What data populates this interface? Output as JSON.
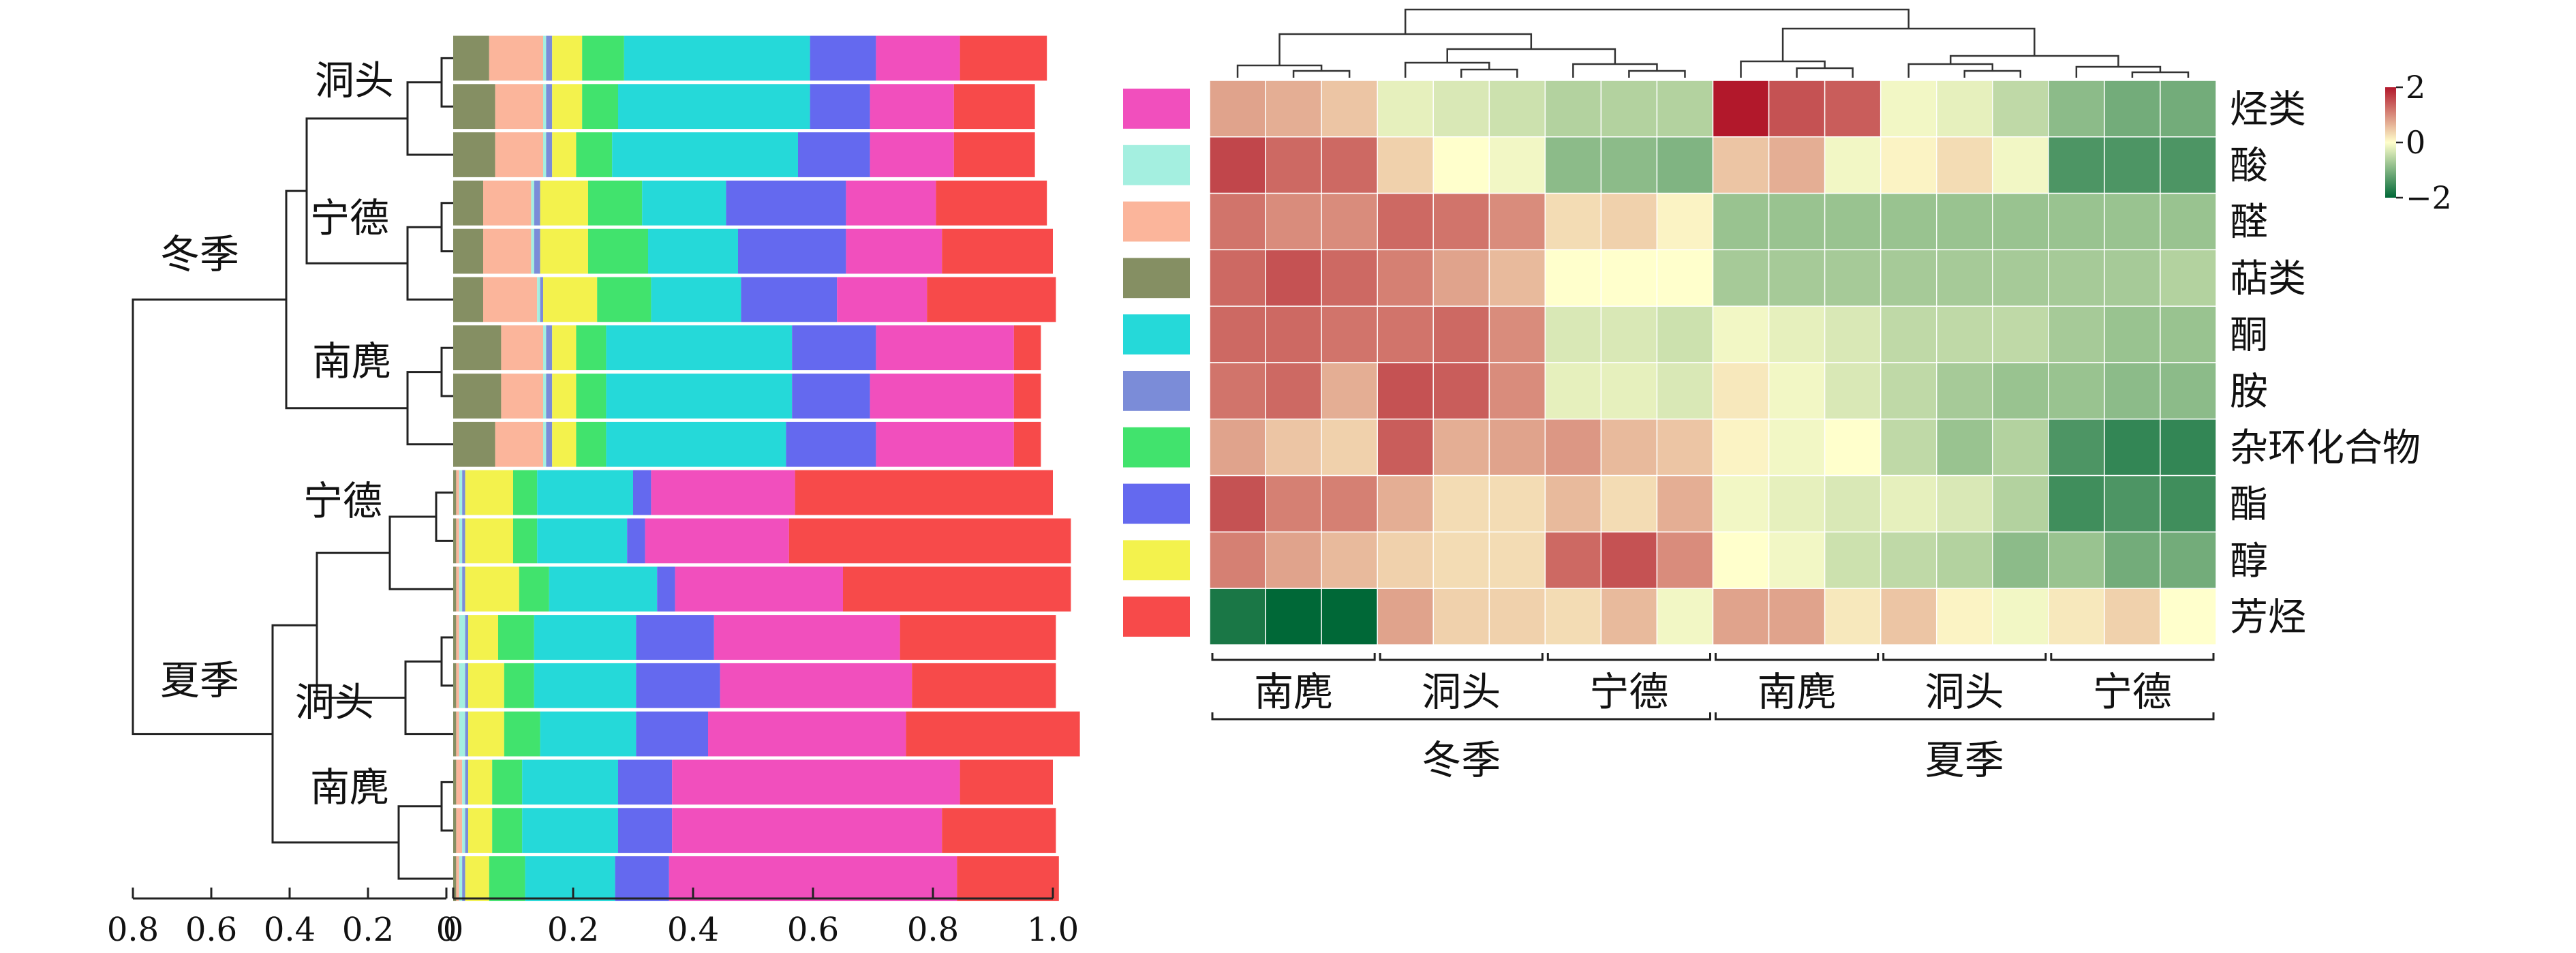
{
  "chart_data": [
    {
      "type": "bar",
      "subtype": "stacked-horizontal-100",
      "xlim": [
        0,
        1.0
      ],
      "x_ticks": [
        "0",
        "0.2",
        "0.4",
        "0.6",
        "0.8",
        "1.0"
      ],
      "dendrogram_ticks": [
        "0.8",
        "0.6",
        "0.4",
        "0.2",
        "0"
      ],
      "season_labels": [
        "冬季",
        "夏季"
      ],
      "site_labels": [
        "洞头",
        "宁德",
        "南麂",
        "宁德",
        "洞头",
        "南麂"
      ],
      "series": [
        {
          "name": "萜类",
          "color": "#858f63",
          "values": [
            0.06,
            0.07,
            0.07,
            0.05,
            0.05,
            0.05,
            0.08,
            0.08,
            0.07,
            0.005,
            0.005,
            0.005,
            0.005,
            0.005,
            0.005,
            0.005,
            0.005,
            0.005
          ]
        },
        {
          "name": "醛",
          "color": "#fbb59b",
          "values": [
            0.09,
            0.08,
            0.08,
            0.08,
            0.08,
            0.09,
            0.07,
            0.07,
            0.08,
            0.005,
            0.005,
            0.005,
            0.005,
            0.005,
            0.005,
            0.01,
            0.01,
            0.005
          ]
        },
        {
          "name": "酸",
          "color": "#a4efe0",
          "values": [
            0.005,
            0.005,
            0.005,
            0.005,
            0.005,
            0.005,
            0.005,
            0.005,
            0.005,
            0.005,
            0.005,
            0.005,
            0.01,
            0.01,
            0.01,
            0.005,
            0.005,
            0.005
          ]
        },
        {
          "name": "胺",
          "color": "#7b8cd8",
          "values": [
            0.01,
            0.01,
            0.01,
            0.01,
            0.01,
            0.005,
            0.01,
            0.01,
            0.01,
            0.005,
            0.005,
            0.005,
            0.005,
            0.005,
            0.005,
            0.005,
            0.005,
            0.005
          ]
        },
        {
          "name": "醇",
          "color": "#f3f24d",
          "values": [
            0.05,
            0.05,
            0.04,
            0.08,
            0.08,
            0.09,
            0.04,
            0.04,
            0.04,
            0.08,
            0.08,
            0.09,
            0.05,
            0.06,
            0.06,
            0.04,
            0.04,
            0.04
          ]
        },
        {
          "name": "杂环化合物",
          "color": "#41e36d",
          "values": [
            0.07,
            0.06,
            0.06,
            0.09,
            0.1,
            0.09,
            0.05,
            0.05,
            0.05,
            0.04,
            0.04,
            0.05,
            0.06,
            0.05,
            0.06,
            0.05,
            0.05,
            0.06
          ]
        },
        {
          "name": "酮",
          "color": "#25d9d9",
          "values": [
            0.31,
            0.32,
            0.31,
            0.14,
            0.15,
            0.15,
            0.31,
            0.31,
            0.3,
            0.16,
            0.15,
            0.18,
            0.17,
            0.17,
            0.16,
            0.16,
            0.16,
            0.15
          ]
        },
        {
          "name": "酯",
          "color": "#6469ef",
          "values": [
            0.11,
            0.1,
            0.12,
            0.2,
            0.18,
            0.16,
            0.14,
            0.13,
            0.15,
            0.03,
            0.03,
            0.03,
            0.13,
            0.14,
            0.12,
            0.09,
            0.09,
            0.09
          ]
        },
        {
          "name": "烃类",
          "color": "#f14fbd",
          "values": [
            0.14,
            0.14,
            0.14,
            0.15,
            0.16,
            0.15,
            0.23,
            0.24,
            0.23,
            0.24,
            0.24,
            0.28,
            0.31,
            0.32,
            0.33,
            0.48,
            0.45,
            0.48
          ]
        },
        {
          "name": "芳烃",
          "color": "#f74a4a",
          "values": [
            0.145,
            0.135,
            0.135,
            0.185,
            0.185,
            0.215,
            0.045,
            0.045,
            0.045,
            0.43,
            0.47,
            0.38,
            0.26,
            0.24,
            0.29,
            0.155,
            0.19,
            0.17
          ]
        }
      ]
    },
    {
      "type": "heatmap",
      "rows": [
        "烃类",
        "酸",
        "醛",
        "萜类",
        "酮",
        "胺",
        "杂环化合物",
        "酯",
        "醇",
        "芳烃"
      ],
      "row_colors": [
        "#f14fbd",
        "#a4efe0",
        "#fbb59b",
        "#858f63",
        "#25d9d9",
        "#7b8cd8",
        "#41e36d",
        "#6469ef",
        "#f3f24d",
        "#f74a4a"
      ],
      "site_labels": [
        "南麂",
        "洞头",
        "宁德",
        "南麂",
        "洞头",
        "宁德"
      ],
      "season_labels": [
        "冬季",
        "夏季"
      ],
      "colorbar": {
        "min": -2,
        "max": 2,
        "tick_labels": [
          "2",
          "0",
          "−2"
        ],
        "colors": [
          "#b2182b",
          "#ffffcc",
          "#006837"
        ]
      },
      "values": [
        [
          0.8,
          0.7,
          0.5,
          -0.2,
          -0.3,
          -0.4,
          -0.6,
          -0.6,
          -0.6,
          2.0,
          1.5,
          1.4,
          -0.1,
          -0.2,
          -0.5,
          -0.9,
          -1.1,
          -1.1
        ],
        [
          1.6,
          1.3,
          1.3,
          0.4,
          0.0,
          -0.1,
          -0.9,
          -0.9,
          -1.0,
          0.5,
          0.7,
          -0.1,
          0.1,
          0.3,
          -0.1,
          -1.4,
          -1.4,
          -1.4
        ],
        [
          1.2,
          1.0,
          1.0,
          1.3,
          1.2,
          1.0,
          0.3,
          0.4,
          0.1,
          -0.8,
          -0.8,
          -0.8,
          -0.8,
          -0.8,
          -0.8,
          -0.8,
          -0.8,
          -0.8
        ],
        [
          1.3,
          1.5,
          1.3,
          1.1,
          0.8,
          0.6,
          0.0,
          0.0,
          0.0,
          -0.7,
          -0.7,
          -0.7,
          -0.7,
          -0.7,
          -0.7,
          -0.7,
          -0.7,
          -0.6
        ],
        [
          1.3,
          1.3,
          1.2,
          1.2,
          1.3,
          1.0,
          -0.3,
          -0.3,
          -0.4,
          -0.1,
          -0.2,
          -0.3,
          -0.5,
          -0.5,
          -0.5,
          -0.7,
          -0.8,
          -0.8
        ],
        [
          1.2,
          1.3,
          0.7,
          1.5,
          1.4,
          1.0,
          -0.2,
          -0.2,
          -0.3,
          0.2,
          -0.1,
          -0.3,
          -0.5,
          -0.7,
          -0.8,
          -0.8,
          -0.9,
          -0.9
        ],
        [
          0.8,
          0.5,
          0.4,
          1.4,
          0.7,
          0.8,
          0.9,
          0.6,
          0.5,
          0.1,
          -0.1,
          0.0,
          -0.5,
          -0.8,
          -0.6,
          -1.4,
          -1.6,
          -1.6
        ],
        [
          1.5,
          1.1,
          1.1,
          0.7,
          0.3,
          0.3,
          0.6,
          0.3,
          0.7,
          -0.1,
          -0.2,
          -0.3,
          -0.2,
          -0.3,
          -0.6,
          -1.5,
          -1.4,
          -1.5
        ],
        [
          1.1,
          0.8,
          0.6,
          0.4,
          0.3,
          0.3,
          1.3,
          1.5,
          1.0,
          0.0,
          -0.1,
          -0.4,
          -0.5,
          -0.6,
          -0.9,
          -0.8,
          -1.1,
          -1.1
        ],
        [
          -1.8,
          -2.0,
          -2.0,
          0.8,
          0.4,
          0.4,
          0.3,
          0.6,
          -0.1,
          0.8,
          0.8,
          0.2,
          0.5,
          0.1,
          -0.1,
          0.2,
          0.4,
          0.0
        ]
      ]
    }
  ]
}
